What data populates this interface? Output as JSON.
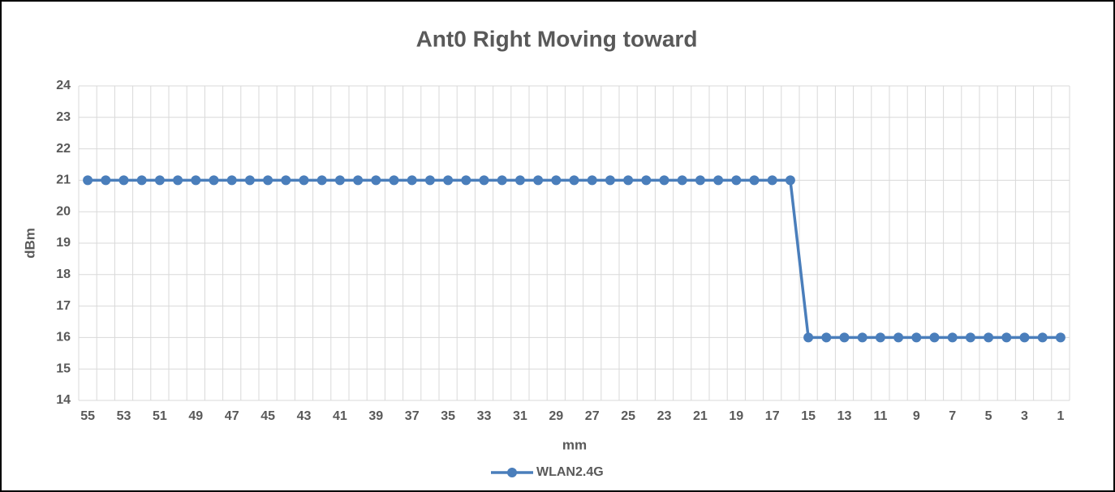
{
  "chart_data": {
    "type": "line",
    "title": "Ant0 Right Moving toward",
    "x_label": "mm",
    "y_label": "dBm",
    "categories": [
      "55",
      null,
      "53",
      null,
      "51",
      null,
      "49",
      null,
      "47",
      null,
      "45",
      null,
      "43",
      null,
      "41",
      null,
      "39",
      null,
      "37",
      null,
      "35",
      null,
      "33",
      null,
      "31",
      null,
      "29",
      null,
      "27",
      null,
      "25",
      null,
      "23",
      null,
      "21",
      null,
      "19",
      null,
      "17",
      null,
      "15",
      null,
      "13",
      null,
      "11",
      null,
      "9",
      null,
      "7",
      null,
      "5",
      null,
      "3",
      null,
      "1"
    ],
    "series": [
      {
        "name": "WLAN2.4G",
        "color": "#4a7ebb",
        "values": [
          21,
          21,
          21,
          21,
          21,
          21,
          21,
          21,
          21,
          21,
          21,
          21,
          21,
          21,
          21,
          21,
          21,
          21,
          21,
          21,
          21,
          21,
          21,
          21,
          21,
          21,
          21,
          21,
          21,
          21,
          21,
          21,
          21,
          21,
          21,
          21,
          21,
          21,
          21,
          21,
          16,
          16,
          16,
          16,
          16,
          16,
          16,
          16,
          16,
          16,
          16,
          16,
          16,
          16,
          16
        ]
      }
    ],
    "ylim": [
      14,
      24
    ],
    "yticks": [
      14,
      15,
      16,
      17,
      18,
      19,
      20,
      21,
      22,
      23,
      24
    ],
    "grid": true,
    "legend": "bottom"
  }
}
